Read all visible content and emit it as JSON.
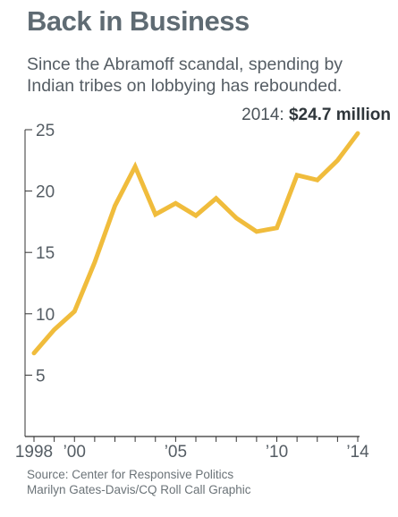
{
  "title": "Back in Business",
  "subtitle": "Since the Abramoff scandal, spending by Indian tribes on lobbying has rebounded.",
  "callout": {
    "prefix": "2014: ",
    "value": "$24.7 million"
  },
  "source": {
    "line1": "Source: Center for Responsive Politics",
    "line2": "Marilyn Gates-Davis/CQ Roll Call Graphic"
  },
  "colors": {
    "line": "#f0bc3c",
    "axis": "#333333",
    "text": "#555d64"
  },
  "chart_data": {
    "type": "line",
    "title": "Back in Business",
    "subtitle": "Since the Abramoff scandal, spending by Indian tribes on lobbying has rebounded.",
    "xlabel": "",
    "ylabel": "",
    "x": [
      1998,
      1999,
      2000,
      2001,
      2002,
      2003,
      2004,
      2005,
      2006,
      2007,
      2008,
      2009,
      2010,
      2011,
      2012,
      2013,
      2014
    ],
    "series": [
      {
        "values": [
          6.8,
          8.7,
          10.2,
          14.2,
          18.8,
          22.0,
          18.1,
          19.0,
          18.0,
          19.4,
          17.8,
          16.7,
          17.0,
          21.3,
          20.9,
          22.5,
          24.7
        ]
      }
    ],
    "ylim": [
      0,
      25
    ],
    "xlim": [
      1998,
      2014
    ],
    "yticks": [
      {
        "value": 5,
        "label": "5"
      },
      {
        "value": 10,
        "label": "10"
      },
      {
        "value": 15,
        "label": "15"
      },
      {
        "value": 20,
        "label": "20"
      },
      {
        "value": 25,
        "label": "25"
      }
    ],
    "xticks": [
      {
        "value": 1998,
        "label": "1998"
      },
      {
        "value": 2000,
        "label": "’00"
      },
      {
        "value": 2005,
        "label": "’05"
      },
      {
        "value": 2010,
        "label": "’10"
      },
      {
        "value": 2014,
        "label": "’14"
      }
    ],
    "grid": false,
    "annotations": [
      {
        "x": 2014,
        "y": 24.7,
        "text": "2014: $24.7 million"
      }
    ]
  }
}
